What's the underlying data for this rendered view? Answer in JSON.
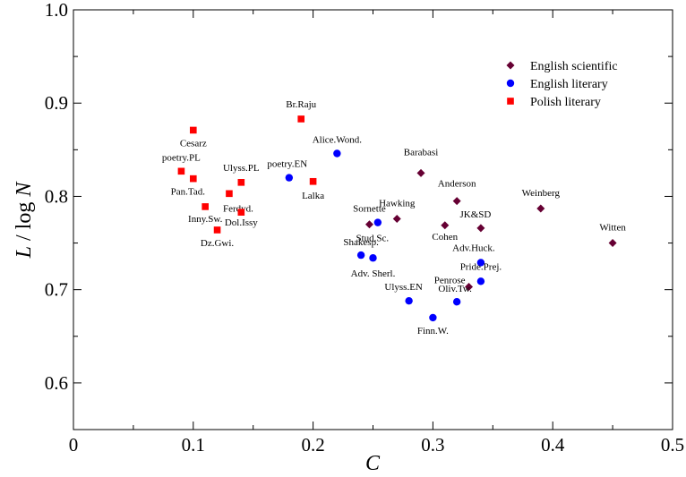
{
  "chart_data": {
    "type": "scatter",
    "xlabel": "C",
    "ylabel": "L / log N",
    "xlim": [
      0,
      0.5
    ],
    "ylim": [
      0.55,
      1.0
    ],
    "x_ticks": [
      0,
      0.1,
      0.2,
      0.3,
      0.4,
      0.5
    ],
    "x_tick_labels": [
      "0",
      "0.1",
      "0.2",
      "0.3",
      "0.4",
      "0.5"
    ],
    "y_ticks": [
      0.6,
      0.7,
      0.8,
      0.9,
      1.0
    ],
    "y_tick_labels": [
      "0.6",
      "0.7",
      "0.8",
      "0.9",
      "1.0"
    ],
    "grid": false,
    "legend_position": "top-right",
    "series": [
      {
        "name": "English scientific",
        "marker": "diamond",
        "color": "#660033",
        "points": [
          {
            "label": "Barabasi",
            "x": 0.29,
            "y": 0.825
          },
          {
            "label": "Anderson",
            "x": 0.32,
            "y": 0.795
          },
          {
            "label": "Weinberg",
            "x": 0.39,
            "y": 0.787
          },
          {
            "label": "Sornette",
            "x": 0.247,
            "y": 0.77
          },
          {
            "label": "Hawking",
            "x": 0.27,
            "y": 0.776
          },
          {
            "label": "Cohen",
            "x": 0.31,
            "y": 0.769
          },
          {
            "label": "JK&SD",
            "x": 0.34,
            "y": 0.766
          },
          {
            "label": "Witten",
            "x": 0.45,
            "y": 0.75
          },
          {
            "label": "Penrose",
            "x": 0.33,
            "y": 0.703
          }
        ]
      },
      {
        "name": "English literary",
        "marker": "circle",
        "color": "#0000ff",
        "points": [
          {
            "label": "Alice.Wond.",
            "x": 0.22,
            "y": 0.846
          },
          {
            "label": "poetry.EN",
            "x": 0.18,
            "y": 0.82
          },
          {
            "label": "Stud.Sc.",
            "x": 0.254,
            "y": 0.772
          },
          {
            "label": "Shakesp.",
            "x": 0.24,
            "y": 0.737
          },
          {
            "label": "Adv. Sherl.",
            "x": 0.25,
            "y": 0.734
          },
          {
            "label": "Adv.Huck.",
            "x": 0.34,
            "y": 0.729
          },
          {
            "label": "Pride.Prej.",
            "x": 0.34,
            "y": 0.709
          },
          {
            "label": "Ulyss.EN",
            "x": 0.28,
            "y": 0.688
          },
          {
            "label": "Oliv.Tw.",
            "x": 0.32,
            "y": 0.687
          },
          {
            "label": "Finn.W.",
            "x": 0.3,
            "y": 0.67
          }
        ]
      },
      {
        "name": "Polish literary",
        "marker": "square",
        "color": "#ff0000",
        "points": [
          {
            "label": "Br.Raju",
            "x": 0.19,
            "y": 0.883
          },
          {
            "label": "Cesarz",
            "x": 0.1,
            "y": 0.871
          },
          {
            "label": "poetry.PL",
            "x": 0.09,
            "y": 0.827
          },
          {
            "label": "Pan.Tad.",
            "x": 0.1,
            "y": 0.819
          },
          {
            "label": "Ulyss.PL",
            "x": 0.14,
            "y": 0.815
          },
          {
            "label": "Lalka",
            "x": 0.2,
            "y": 0.816
          },
          {
            "label": "Ferdyd.",
            "x": 0.13,
            "y": 0.803
          },
          {
            "label": "Inny.Sw.",
            "x": 0.11,
            "y": 0.789
          },
          {
            "label": "Dol.Issy",
            "x": 0.14,
            "y": 0.783
          },
          {
            "label": "Dz.Gwi.",
            "x": 0.12,
            "y": 0.764
          }
        ]
      }
    ]
  }
}
